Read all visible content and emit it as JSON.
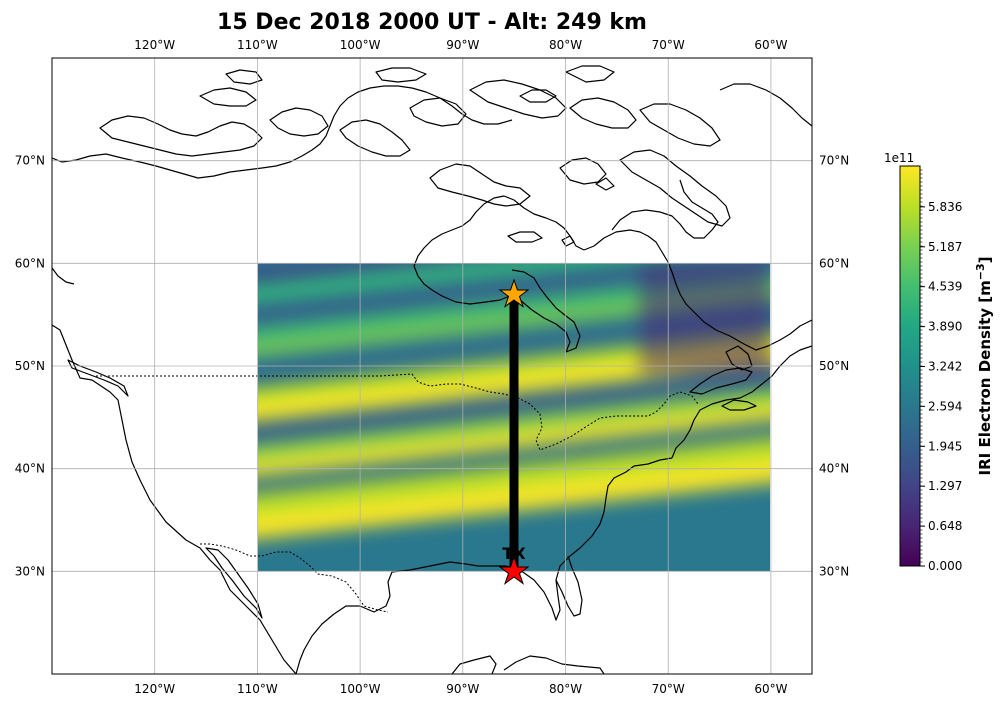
{
  "title": "15 Dec 2018 2000 UT - Alt: 249 km",
  "map": {
    "lon_range": [
      -130,
      -56
    ],
    "lat_range": [
      20,
      80
    ],
    "grid_lons": [
      -120,
      -110,
      -100,
      -90,
      -80,
      -70,
      -60
    ],
    "grid_lats": [
      30,
      40,
      50,
      60,
      70
    ],
    "lon_labels": [
      "120°W",
      "110°W",
      "100°W",
      "90°W",
      "80°W",
      "70°W",
      "60°W"
    ],
    "lat_labels": [
      "30°N",
      "40°N",
      "50°N",
      "60°N",
      "70°N"
    ],
    "heatmap_extent": {
      "lon": [
        -110,
        -60
      ],
      "lat": [
        30,
        60
      ]
    }
  },
  "path": {
    "start": {
      "lon": -85,
      "lat": 30,
      "marker": "red-star"
    },
    "end": {
      "lon": -85,
      "lat": 57,
      "marker": "orange-star"
    },
    "station_label": "TX"
  },
  "colorbar": {
    "label": "IRI Electron Density [m",
    "label_exp": "−3",
    "label_close": "]",
    "multiplier": "1e11",
    "ticks": [
      "0.000",
      "0.648",
      "1.297",
      "1.945",
      "2.594",
      "3.242",
      "3.890",
      "4.539",
      "5.187",
      "5.836"
    ],
    "tick_values": [
      0,
      0.648,
      1.297,
      1.945,
      2.594,
      3.242,
      3.89,
      4.539,
      5.187,
      5.836
    ],
    "max_value": 6.5,
    "colormap": "viridis"
  },
  "chart_data": {
    "type": "heatmap",
    "title": "15 Dec 2018 2000 UT - Alt: 249 km",
    "xlabel": "",
    "ylabel": "",
    "x_range": [
      -110,
      -60
    ],
    "y_range": [
      30,
      60
    ],
    "value_range": [
      0,
      6.5
    ],
    "colorbar_label": "IRI Electron Density [m^-3]",
    "colorbar_scale": "1e11"
  }
}
